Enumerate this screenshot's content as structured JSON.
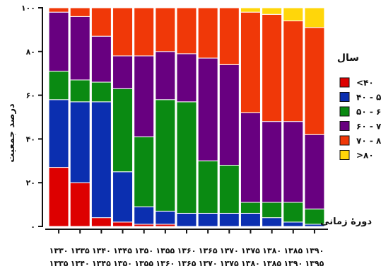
{
  "chart_data": {
    "type": "bar",
    "stacked": true,
    "ylabel": "درصد جمعیت",
    "xlabel": "دورهٔ زمانی",
    "ylim": [
      0,
      100
    ],
    "yticks": [
      "۰",
      "۲۰",
      "۴۰",
      "۶۰",
      "۸۰",
      "۱۰۰"
    ],
    "categories": [
      [
        "۱۳۳۰",
        "۱۳۳۵"
      ],
      [
        "۱۳۳۵",
        "۱۳۴۰"
      ],
      [
        "۱۳۴۰",
        "۱۳۴۵"
      ],
      [
        "۱۳۴۵",
        "۱۳۵۰"
      ],
      [
        "۱۳۵۰",
        "۱۳۵۵"
      ],
      [
        "۱۳۵۵",
        "۱۳۶۰"
      ],
      [
        "۱۳۶۰",
        "۱۳۶۵"
      ],
      [
        "۱۳۶۵",
        "۱۳۷۰"
      ],
      [
        "۱۳۷۰",
        "۱۳۷۵"
      ],
      [
        "۱۳۷۵",
        "۱۳۸۰"
      ],
      [
        "۱۳۸۰",
        "۱۳۸۵"
      ],
      [
        "۱۳۸۵",
        "۱۳۹۰"
      ],
      [
        "۱۳۹۰",
        "۱۳۹۵"
      ]
    ],
    "legend_title": "سال",
    "legend_position": "right",
    "series": [
      {
        "name": "<۴۰",
        "color": "#dd0000",
        "values": [
          27,
          20,
          4,
          2,
          1,
          1,
          0,
          0,
          0,
          0,
          0,
          0,
          0
        ]
      },
      {
        "name": "۴۰ - ۵۰",
        "color": "#0b2fb0",
        "values": [
          31,
          37,
          53,
          23,
          8,
          6,
          6,
          6,
          6,
          6,
          4,
          2,
          1
        ]
      },
      {
        "name": "۵۰ - ۶۰",
        "color": "#0a8a12",
        "values": [
          13,
          10,
          9,
          38,
          32,
          51,
          51,
          24,
          22,
          5,
          7,
          9,
          7
        ]
      },
      {
        "name": "۶۰ - ۷۰",
        "color": "#680080",
        "values": [
          27,
          29,
          21,
          15,
          37,
          22,
          22,
          47,
          46,
          41,
          37,
          37,
          34
        ]
      },
      {
        "name": "۷۰ - ۸۰",
        "color": "#f03808",
        "values": [
          2,
          4,
          13,
          22,
          22,
          20,
          21,
          23,
          26,
          46,
          49,
          46,
          49
        ]
      },
      {
        "name": ">۸۰",
        "color": "#ffd60a",
        "values": [
          0,
          0,
          0,
          0,
          0,
          0,
          0,
          0,
          0,
          2,
          3,
          6,
          9
        ]
      }
    ]
  }
}
